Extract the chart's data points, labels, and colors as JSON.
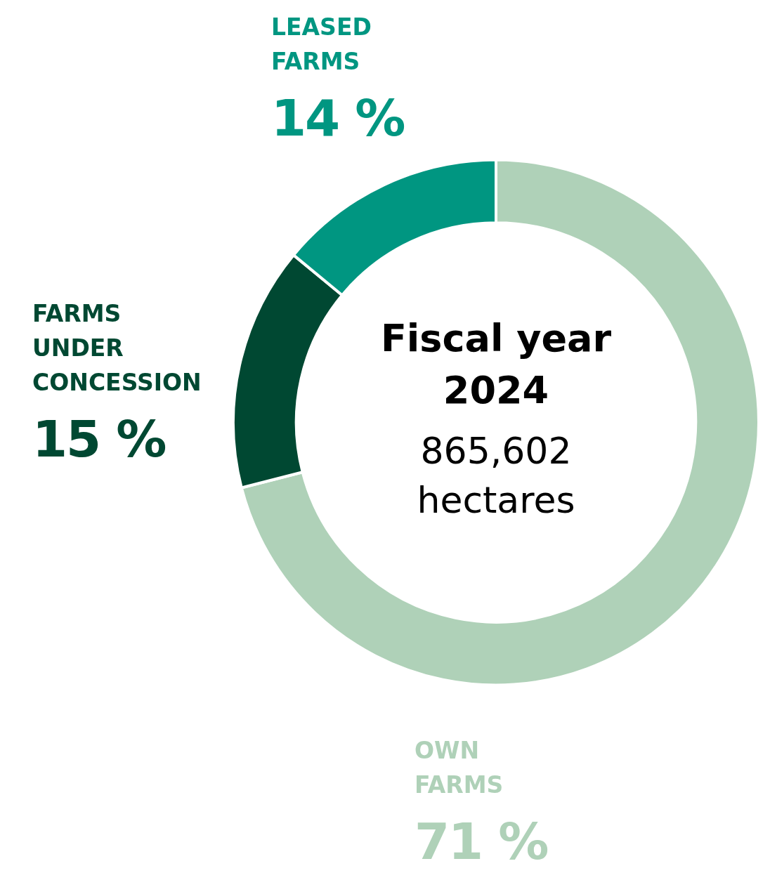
{
  "chart_data": {
    "type": "donut",
    "title": "Fiscal year 2024",
    "subtitle": "865,602 hectares",
    "categories": [
      "OWN FARMS",
      "FARMS UNDER CONCESSION",
      "LEASED FARMS"
    ],
    "values": [
      71,
      15,
      14
    ],
    "colors": [
      "#afd1b8",
      "#004832",
      "#009681"
    ],
    "value_labels": [
      "71 %",
      "15 %",
      "14 %"
    ],
    "legend": false
  }
}
